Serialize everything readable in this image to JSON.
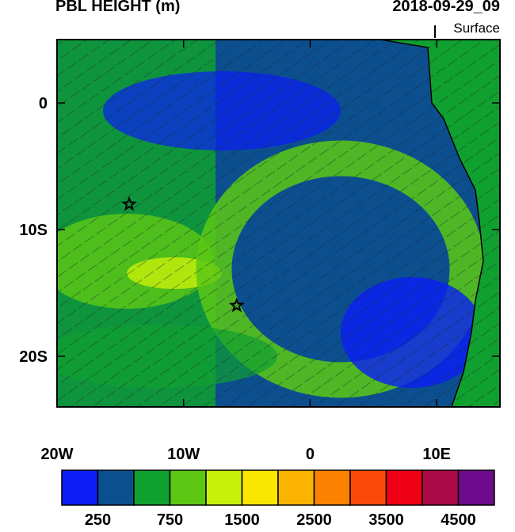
{
  "map": {
    "title": "PBL HEIGHT (m)",
    "time": "2018-09-29_09",
    "level": "Surface",
    "xlim": [
      -20,
      15
    ],
    "ylim": [
      -24,
      5
    ],
    "xticks": [
      {
        "value": -20,
        "label": "20W"
      },
      {
        "value": -10,
        "label": "10W"
      },
      0,
      {
        "value": 10,
        "label": "10E"
      }
    ],
    "yticks": [
      0,
      {
        "value": -10,
        "label": "10S"
      },
      {
        "value": -20,
        "label": "20S"
      }
    ],
    "markers": [
      {
        "lon": -14.3,
        "lat": -8
      },
      {
        "lon": -5.8,
        "lat": -16
      }
    ],
    "colorbar": {
      "colors": [
        "#0a1ef5",
        "#0c4f8f",
        "#10a030",
        "#5cc814",
        "#c8f00a",
        "#fae600",
        "#fab400",
        "#fa8200",
        "#fa4a0a",
        "#f00014",
        "#aa0a46",
        "#6e0a8c"
      ],
      "labels": [
        250,
        750,
        1500,
        2500,
        3500,
        4500
      ]
    }
  }
}
